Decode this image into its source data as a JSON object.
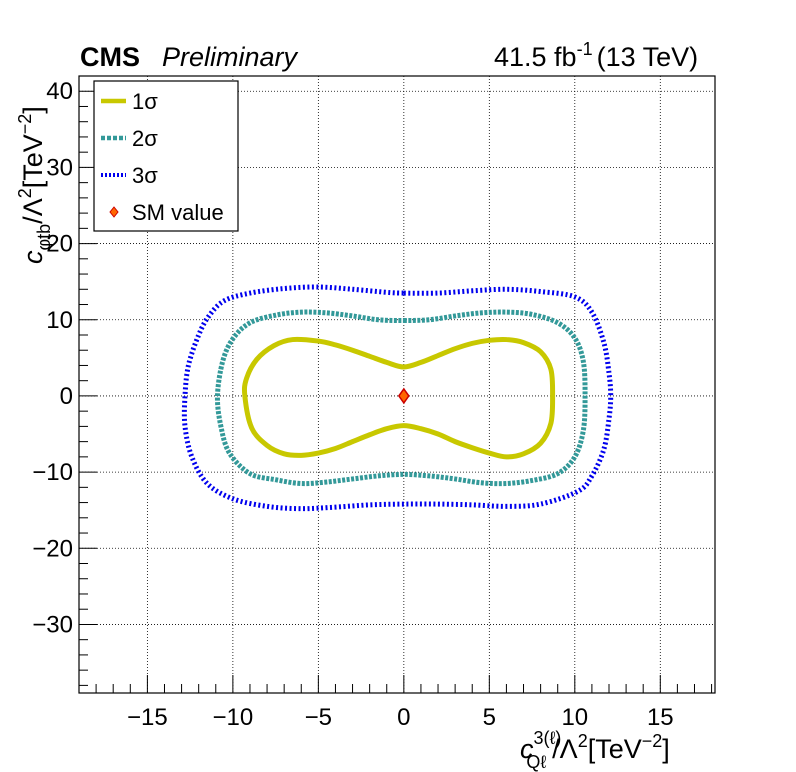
{
  "header": {
    "experiment": "CMS",
    "status": "Preliminary",
    "luminosity": "41.5 fb",
    "lumi_unit_exp": "-1",
    "energy": "(13 TeV)"
  },
  "chart_data": {
    "type": "scatter",
    "title": "",
    "xlabel": {
      "symbol": "c",
      "superscript": "3(ℓ)",
      "subscript": "Qℓ",
      "rest": "/Λ",
      "rest_exp": "2",
      "unit": "[TeV",
      "unit_exp": "−2",
      "unit_close": "]"
    },
    "ylabel": {
      "symbol": "c",
      "subscript": "φtb",
      "rest": "/Λ",
      "rest_exp": "2",
      "unit": "[TeV",
      "unit_exp": "−2",
      "unit_close": "]"
    },
    "xlim": [
      -19,
      18.2
    ],
    "ylim": [
      -39,
      42
    ],
    "x_ticks": [
      -15,
      -10,
      -5,
      0,
      5,
      10,
      15
    ],
    "x_tick_labels": [
      "−15",
      "−10",
      "−5",
      "0",
      "5",
      "10",
      "15"
    ],
    "y_ticks": [
      -30,
      -20,
      -10,
      0,
      10,
      20,
      30,
      40
    ],
    "y_tick_labels": [
      "−30",
      "−20",
      "−10",
      "0",
      "10",
      "20",
      "30",
      "40"
    ],
    "grid": true,
    "legend_position": "top-left",
    "series": [
      {
        "name": "1σ",
        "color": "#c8c800",
        "style": "solid",
        "points": [
          [
            0,
            3.8
          ],
          [
            1,
            4.4
          ],
          [
            2,
            5.3
          ],
          [
            3,
            6.2
          ],
          [
            4,
            6.9
          ],
          [
            5,
            7.3
          ],
          [
            6,
            7.4
          ],
          [
            7,
            7.0
          ],
          [
            8,
            5.8
          ],
          [
            8.6,
            3.5
          ],
          [
            8.7,
            0
          ],
          [
            8.6,
            -3.6
          ],
          [
            8.0,
            -6.2
          ],
          [
            7,
            -7.6
          ],
          [
            6,
            -8.0
          ],
          [
            5,
            -7.5
          ],
          [
            4,
            -6.8
          ],
          [
            3,
            -6.0
          ],
          [
            2,
            -5.0
          ],
          [
            1,
            -4.3
          ],
          [
            0,
            -3.9
          ],
          [
            -1,
            -4.3
          ],
          [
            -2,
            -5.1
          ],
          [
            -3,
            -6.0
          ],
          [
            -4,
            -6.9
          ],
          [
            -5,
            -7.5
          ],
          [
            -6,
            -7.8
          ],
          [
            -7,
            -7.6
          ],
          [
            -8,
            -6.5
          ],
          [
            -8.9,
            -4.2
          ],
          [
            -9.3,
            0
          ],
          [
            -9.2,
            2.3
          ],
          [
            -8.6,
            4.8
          ],
          [
            -7.6,
            6.6
          ],
          [
            -6.5,
            7.4
          ],
          [
            -5,
            7.2
          ],
          [
            -4,
            6.7
          ],
          [
            -3,
            6.0
          ],
          [
            -2,
            5.2
          ],
          [
            -1,
            4.4
          ],
          [
            0,
            3.8
          ]
        ]
      },
      {
        "name": "2σ",
        "color": "#339999",
        "style": "dashed",
        "points": [
          [
            0,
            9.9
          ],
          [
            1.5,
            10.0
          ],
          [
            3,
            10.5
          ],
          [
            4.5,
            10.9
          ],
          [
            6,
            11.0
          ],
          [
            7.5,
            10.7
          ],
          [
            9,
            9.6
          ],
          [
            10,
            7.6
          ],
          [
            10.5,
            4.5
          ],
          [
            10.6,
            0
          ],
          [
            10.5,
            -4.5
          ],
          [
            10,
            -8.0
          ],
          [
            9,
            -10.2
          ],
          [
            7.5,
            -11.1
          ],
          [
            6,
            -11.5
          ],
          [
            4.5,
            -11.4
          ],
          [
            3,
            -10.9
          ],
          [
            1.5,
            -10.5
          ],
          [
            0,
            -10.3
          ],
          [
            -1.5,
            -10.5
          ],
          [
            -3,
            -10.9
          ],
          [
            -4.5,
            -11.3
          ],
          [
            -6,
            -11.5
          ],
          [
            -7.5,
            -11.0
          ],
          [
            -9,
            -10.2
          ],
          [
            -10.2,
            -7.5
          ],
          [
            -10.7,
            -4.0
          ],
          [
            -10.9,
            0
          ],
          [
            -10.6,
            4.5
          ],
          [
            -10,
            7.5
          ],
          [
            -9,
            9.6
          ],
          [
            -7.5,
            10.6
          ],
          [
            -6,
            11.0
          ],
          [
            -4.5,
            10.9
          ],
          [
            -3,
            10.5
          ],
          [
            -1.5,
            10.0
          ],
          [
            0,
            9.9
          ]
        ]
      },
      {
        "name": "3σ",
        "color": "#0000ee",
        "style": "dotted",
        "points": [
          [
            0,
            13.5
          ],
          [
            2,
            13.5
          ],
          [
            4,
            13.8
          ],
          [
            6,
            14.0
          ],
          [
            8,
            13.7
          ],
          [
            10,
            13.0
          ],
          [
            11,
            11.0
          ],
          [
            11.7,
            7.0
          ],
          [
            12,
            3.0
          ],
          [
            12.1,
            0
          ],
          [
            12,
            -3.0
          ],
          [
            11.7,
            -7.0
          ],
          [
            11,
            -10.5
          ],
          [
            10.2,
            -12.5
          ],
          [
            8,
            -14.2
          ],
          [
            6,
            -14.5
          ],
          [
            4,
            -14.3
          ],
          [
            2,
            -14.2
          ],
          [
            0,
            -14.2
          ],
          [
            -2,
            -14.3
          ],
          [
            -4,
            -14.6
          ],
          [
            -6,
            -14.8
          ],
          [
            -8,
            -14.5
          ],
          [
            -10,
            -13.5
          ],
          [
            -11.5,
            -11.5
          ],
          [
            -12.4,
            -8.0
          ],
          [
            -12.8,
            -4.0
          ],
          [
            -12.8,
            0
          ],
          [
            -12.6,
            4.0
          ],
          [
            -12,
            8.0
          ],
          [
            -11.4,
            10.5
          ],
          [
            -10.5,
            12.5
          ],
          [
            -9,
            13.5
          ],
          [
            -7,
            14.1
          ],
          [
            -5,
            14.3
          ],
          [
            -3,
            14.0
          ],
          [
            -1,
            13.6
          ],
          [
            0,
            13.5
          ]
        ]
      },
      {
        "name": "SM value",
        "color": "#ff6600",
        "edge_color": "#cc0000",
        "style": "marker",
        "points": [
          [
            0,
            0
          ]
        ]
      }
    ]
  }
}
